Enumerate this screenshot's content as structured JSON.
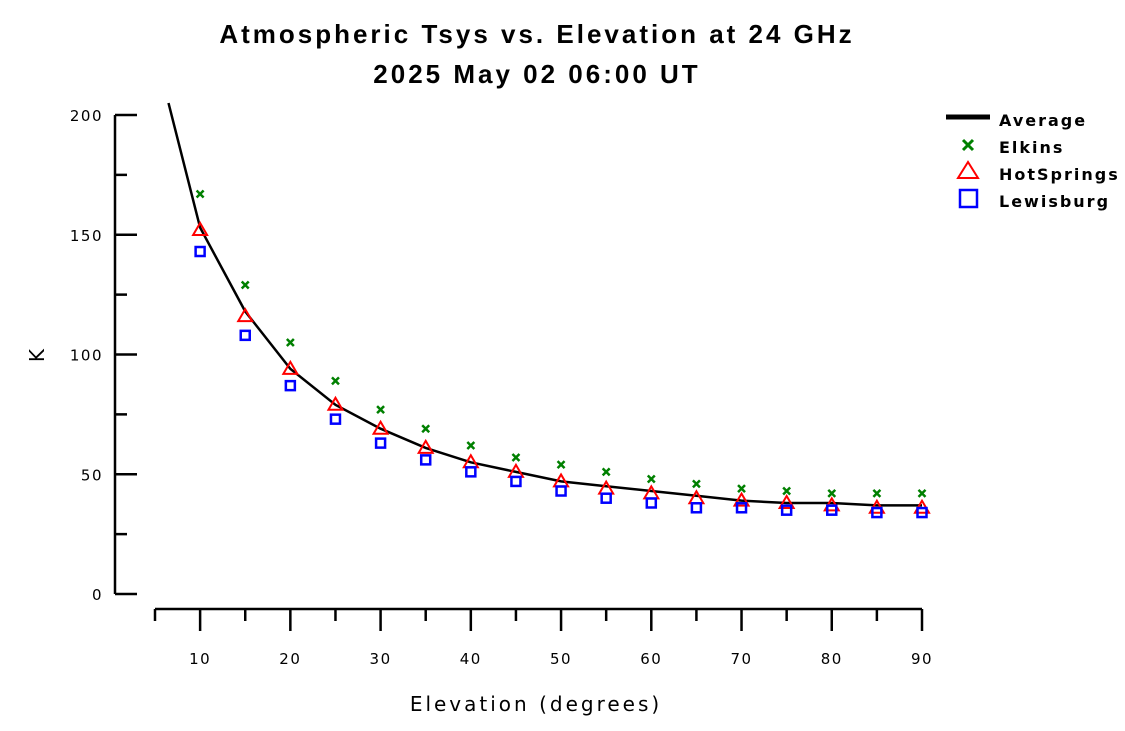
{
  "chart_data": {
    "type": "line",
    "title": "Atmospheric Tsys vs. Elevation at 24 GHz",
    "subtitle": "2025 May 02 06:00 UT",
    "xlabel": "Elevation (degrees)",
    "ylabel": "K",
    "xlim": [
      5,
      90
    ],
    "ylim": [
      0,
      200
    ],
    "x_ticks": [
      10,
      20,
      30,
      40,
      50,
      60,
      70,
      80,
      90
    ],
    "y_ticks": [
      0,
      50,
      100,
      150,
      200
    ],
    "grid": false,
    "legend_position": "top-right",
    "x": [
      10,
      15,
      20,
      25,
      30,
      35,
      40,
      45,
      50,
      55,
      60,
      65,
      70,
      75,
      80,
      85,
      90
    ],
    "series": [
      {
        "name": "Average",
        "style": "line",
        "color": "#000000",
        "values": [
          153,
          118,
          94,
          79,
          69,
          61,
          55,
          51,
          47,
          45,
          43,
          41,
          39,
          38,
          38,
          37,
          37
        ],
        "start_point": [
          6.5,
          205
        ]
      },
      {
        "name": "Elkins",
        "style": "x",
        "color": "#008000",
        "values": [
          167,
          129,
          105,
          89,
          77,
          69,
          62,
          57,
          54,
          51,
          48,
          46,
          44,
          43,
          42,
          42,
          42
        ]
      },
      {
        "name": "HotSprings",
        "style": "triangle",
        "color": "#ff0000",
        "values": [
          152,
          116,
          94,
          79,
          69,
          61,
          55,
          51,
          47,
          44,
          42,
          40,
          39,
          38,
          37,
          36,
          36
        ]
      },
      {
        "name": "Lewisburg",
        "style": "square",
        "color": "#0000ff",
        "values": [
          143,
          108,
          87,
          73,
          63,
          56,
          51,
          47,
          43,
          40,
          38,
          36,
          36,
          35,
          35,
          34,
          34
        ]
      }
    ]
  }
}
